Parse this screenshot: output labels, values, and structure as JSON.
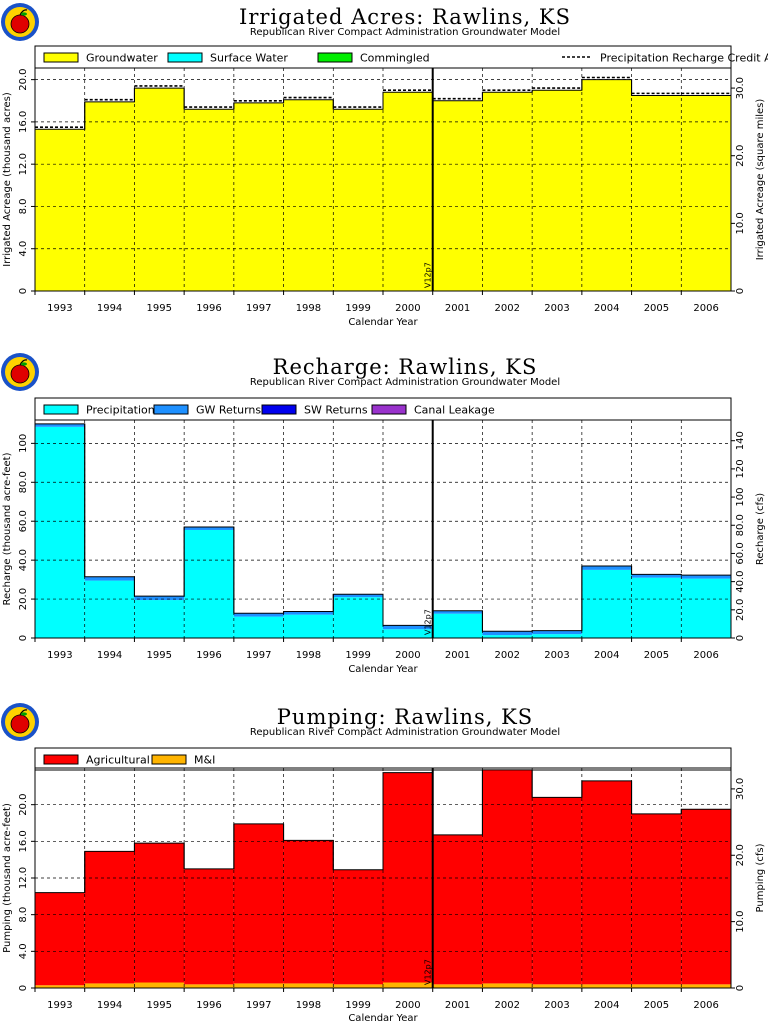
{
  "chart_data": [
    {
      "type": "area",
      "title": "Irrigated Acres: Rawlins, KS",
      "subtitle": "Republican River Compact Administration Groundwater Model",
      "xlabel": "Calendar Year",
      "ylabel": "Irrigated Acreage (thousand acres)",
      "y2label": "Irrigated Acreage (square miles)",
      "categories": [
        "1993",
        "1994",
        "1995",
        "1996",
        "1997",
        "1998",
        "1999",
        "2000",
        "2001",
        "2002",
        "2003",
        "2004",
        "2005",
        "2006"
      ],
      "ylim": [
        0,
        21.1
      ],
      "yticks": [
        0,
        4,
        8,
        12,
        16,
        20
      ],
      "ytick_labels": [
        "0",
        "4.0",
        "8.0",
        "12.0",
        "16.0",
        "20.0"
      ],
      "y2_factor": 1.5625,
      "y2ticks": [
        0,
        10,
        20,
        30
      ],
      "y2tick_labels": [
        "0",
        "10.0",
        "20.0",
        "30.0"
      ],
      "grid": true,
      "legend_position": "top",
      "vline_after_index": 7,
      "vline_label": "V12p7",
      "series": [
        {
          "name": "Groundwater",
          "color": "#ffff00",
          "values": [
            15.3,
            17.9,
            19.2,
            17.2,
            17.8,
            18.1,
            17.2,
            18.8,
            18.0,
            18.8,
            19.0,
            20.0,
            18.5,
            18.5
          ]
        },
        {
          "name": "Surface Water",
          "color": "#00ffff",
          "values": [
            0,
            0,
            0,
            0,
            0,
            0,
            0,
            0,
            0,
            0,
            0,
            0,
            0,
            0
          ]
        },
        {
          "name": "Commingled",
          "color": "#00ee00",
          "values": [
            0,
            0,
            0,
            0,
            0,
            0,
            0,
            0,
            0,
            0,
            0,
            0,
            0,
            0
          ]
        }
      ],
      "line_series": {
        "name": "Precipitation Recharge Credit Acreage",
        "values": [
          15.5,
          18.1,
          19.4,
          17.4,
          18.0,
          18.3,
          17.4,
          19.0,
          18.2,
          19.0,
          19.2,
          20.2,
          18.7,
          18.7
        ]
      }
    },
    {
      "type": "area",
      "title": "Recharge: Rawlins, KS",
      "subtitle": "Republican River Compact Administration Groundwater Model",
      "xlabel": "Calendar Year",
      "ylabel": "Recharge (thousand acre-feet)",
      "y2label": "Recharge (cfs)",
      "categories": [
        "1993",
        "1994",
        "1995",
        "1996",
        "1997",
        "1998",
        "1999",
        "2000",
        "2001",
        "2002",
        "2003",
        "2004",
        "2005",
        "2006"
      ],
      "ylim": [
        0,
        112
      ],
      "yticks": [
        0,
        20,
        40,
        60,
        80,
        100
      ],
      "ytick_labels": [
        "0",
        "20.0",
        "40.0",
        "60.0",
        "80.0",
        "100"
      ],
      "y2_factor": 1.3812,
      "y2ticks": [
        0,
        20,
        40,
        60,
        80,
        100,
        120,
        140
      ],
      "y2tick_labels": [
        "0",
        "20.0",
        "40.0",
        "60.0",
        "80.0",
        "100",
        "120",
        "140"
      ],
      "grid": true,
      "legend_position": "top",
      "vline_after_index": 7,
      "vline_label": "V12p7",
      "series": [
        {
          "name": "Precipitation",
          "color": "#00ffff",
          "values": [
            108.5,
            29.5,
            19.5,
            55.5,
            11.0,
            12.0,
            21.0,
            4.5,
            12.5,
            1.5,
            2.0,
            35.0,
            31.0,
            30.5
          ]
        },
        {
          "name": "GW Returns",
          "color": "#1e90ff",
          "values": [
            1.5,
            2.0,
            2.0,
            1.5,
            1.7,
            1.6,
            1.5,
            2.0,
            1.5,
            2.0,
            1.8,
            2.0,
            1.7,
            1.8
          ]
        },
        {
          "name": "SW Returns",
          "color": "#0000ee",
          "values": [
            0,
            0,
            0,
            0,
            0,
            0,
            0,
            0,
            0,
            0,
            0,
            0,
            0,
            0
          ]
        },
        {
          "name": "Canal Leakage",
          "color": "#9932cc",
          "values": [
            0,
            0,
            0,
            0,
            0,
            0,
            0,
            0,
            0,
            0,
            0,
            0,
            0,
            0
          ]
        }
      ]
    },
    {
      "type": "area",
      "title": "Pumping: Rawlins, KS",
      "subtitle": "Republican River Compact Administration Groundwater Model",
      "xlabel": "Calendar Year",
      "ylabel": "Pumping (thousand acre-feet)",
      "y2label": "Pumping (cfs)",
      "categories": [
        "1993",
        "1994",
        "1995",
        "1996",
        "1997",
        "1998",
        "1999",
        "2000",
        "2001",
        "2002",
        "2003",
        "2004",
        "2005",
        "2006"
      ],
      "ylim": [
        0,
        24
      ],
      "yticks": [
        0,
        4,
        8,
        12,
        16,
        20
      ],
      "ytick_labels": [
        "0",
        "4.0",
        "8.0",
        "12.0",
        "16.0",
        "20.0"
      ],
      "y2_factor": 1.3812,
      "y2ticks": [
        0,
        10,
        20,
        30
      ],
      "y2tick_labels": [
        "0",
        "10.0",
        "20.0",
        "30.0"
      ],
      "grid": true,
      "legend_position": "top",
      "vline_after_index": 7,
      "vline_label": "V12p7",
      "series": [
        {
          "name": "M&I",
          "color": "#ffb400",
          "values": [
            0.3,
            0.5,
            0.6,
            0.4,
            0.5,
            0.5,
            0.4,
            0.6,
            0.4,
            0.5,
            0.4,
            0.4,
            0.4,
            0.4
          ]
        },
        {
          "name": "Agricultural",
          "color": "#ff0000",
          "values": [
            10.1,
            14.4,
            15.2,
            12.6,
            17.4,
            15.6,
            12.5,
            22.9,
            16.3,
            23.3,
            20.4,
            22.2,
            18.6,
            19.1
          ]
        }
      ],
      "legend_order": [
        "Agricultural",
        "M&I"
      ]
    }
  ]
}
